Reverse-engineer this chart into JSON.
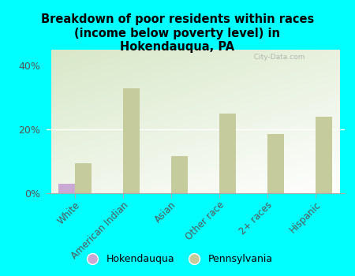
{
  "title": "Breakdown of poor residents within races\n(income below poverty level) in\nHokendauqua, PA",
  "categories": [
    "White",
    "American Indian",
    "Asian",
    "Other race",
    "2+ races",
    "Hispanic"
  ],
  "hokendauqua_values": [
    3.0,
    0,
    0,
    0,
    0,
    0
  ],
  "pennsylvania_values": [
    9.5,
    33.0,
    11.5,
    25.0,
    18.5,
    24.0
  ],
  "hokendauqua_color": "#c9a8d4",
  "pennsylvania_color": "#c5cb9a",
  "background_color": "#00ffff",
  "ylabel_ticks": [
    "0%",
    "20%",
    "40%"
  ],
  "yticks": [
    0,
    20,
    40
  ],
  "ylim": [
    0,
    45
  ],
  "bar_width": 0.35,
  "watermark": "  City-Data.com",
  "legend_hokendauqua": "Hokendauqua",
  "legend_pennsylvania": "Pennsylvania"
}
